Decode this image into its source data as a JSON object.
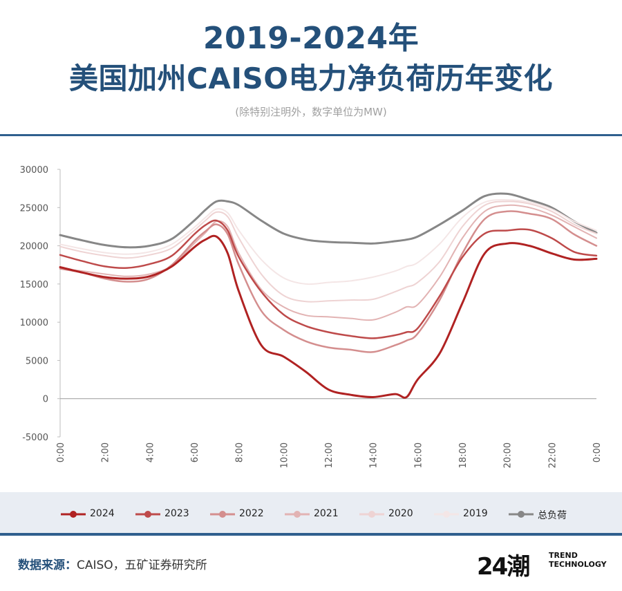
{
  "header": {
    "title_line1": "2019-2024年",
    "title_line2": "美国加州CAISO电力净负荷历年变化",
    "subtitle": "(除特别注明外，数字单位为MW)"
  },
  "footer": {
    "source_label": "数据来源：",
    "source_text": "CAISO，五矿证券研究所",
    "logo_mark": "24潮",
    "logo_line1": "TREND",
    "logo_line2": "TECHNOLOGY"
  },
  "chart_data": {
    "type": "line",
    "title": "2019-2024年美国加州CAISO电力净负荷历年变化",
    "ylabel": "MW",
    "xlabel": "",
    "ylim": [
      -5000,
      30000
    ],
    "yticks": [
      -5000,
      0,
      5000,
      10000,
      15000,
      20000,
      25000,
      30000
    ],
    "ytick_labels": [
      "-5000",
      "0",
      "5000",
      "10000",
      "15000",
      "20000",
      "25000",
      "30000"
    ],
    "x": [
      0,
      1,
      2,
      3,
      4,
      5,
      6,
      6.5,
      7,
      7.5,
      8,
      9,
      10,
      11,
      12,
      13,
      14,
      15,
      15.5,
      16,
      17,
      18,
      19,
      20,
      21,
      22,
      23,
      24
    ],
    "xtick_labels": [
      "0:00",
      "2:00",
      "4:00",
      "6:00",
      "8:00",
      "10:00",
      "12:00",
      "14:00",
      "16:00",
      "18:00",
      "20:00",
      "22:00",
      "0:00"
    ],
    "xtick_hours": [
      0,
      2,
      4,
      6,
      8,
      10,
      12,
      14,
      16,
      18,
      20,
      22,
      24
    ],
    "grid": false,
    "legend_position": "bottom",
    "series": [
      {
        "name": "2024",
        "color": "#b02222",
        "width": 3,
        "values": [
          17200,
          16500,
          15900,
          15700,
          16000,
          17300,
          19800,
          20800,
          21200,
          19000,
          14000,
          7000,
          5500,
          3500,
          1200,
          500,
          200,
          600,
          200,
          2500,
          6000,
          12500,
          19000,
          20300,
          20000,
          19000,
          18200,
          18300
        ]
      },
      {
        "name": "2023",
        "color": "#be4a4a",
        "width": 2.5,
        "values": [
          18800,
          18000,
          17300,
          17100,
          17600,
          18700,
          21500,
          22700,
          23300,
          22000,
          18500,
          14000,
          11000,
          9500,
          8700,
          8200,
          7900,
          8300,
          8700,
          9200,
          13500,
          18500,
          21600,
          22000,
          22100,
          21000,
          19200,
          18700
        ]
      },
      {
        "name": "2022",
        "color": "#d48e8e",
        "width": 2.5,
        "values": [
          17000,
          16500,
          15700,
          15300,
          15700,
          17500,
          20600,
          21900,
          22800,
          21500,
          17500,
          11500,
          9000,
          7500,
          6700,
          6400,
          6100,
          7000,
          7600,
          8500,
          13000,
          19000,
          23500,
          24500,
          24200,
          23500,
          21500,
          20000
        ]
      },
      {
        "name": "2021",
        "color": "#e2b3b3",
        "width": 2,
        "values": [
          17000,
          16700,
          16300,
          16000,
          16300,
          17400,
          20300,
          21700,
          23200,
          22500,
          19000,
          14300,
          12000,
          10900,
          10700,
          10500,
          10300,
          11300,
          12000,
          12300,
          16000,
          21000,
          24500,
          25300,
          25000,
          24000,
          22500,
          21000
        ]
      },
      {
        "name": "2020",
        "color": "#eed3d3",
        "width": 2,
        "values": [
          19900,
          19200,
          18700,
          18400,
          18800,
          19700,
          22000,
          23300,
          24400,
          23800,
          21000,
          16300,
          13500,
          12700,
          12800,
          12900,
          13000,
          14000,
          14600,
          15200,
          18000,
          22500,
          25300,
          25800,
          25500,
          24500,
          22800,
          21600
        ]
      },
      {
        "name": "2019",
        "color": "#f4e6e6",
        "width": 2,
        "values": [
          20200,
          19600,
          19100,
          18900,
          19200,
          20200,
          22400,
          23700,
          24800,
          24300,
          22000,
          18200,
          15800,
          15000,
          15200,
          15400,
          15900,
          16700,
          17300,
          17800,
          20300,
          23700,
          25700,
          26000,
          25700,
          24800,
          23200,
          22000
        ]
      },
      {
        "name": "总负荷",
        "color": "#878787",
        "width": 3,
        "values": [
          21400,
          20700,
          20100,
          19800,
          20000,
          20900,
          23300,
          24700,
          25800,
          25800,
          25300,
          23300,
          21600,
          20800,
          20500,
          20400,
          20300,
          20600,
          20800,
          21200,
          22800,
          24600,
          26500,
          26800,
          26000,
          25000,
          23200,
          21700
        ]
      }
    ]
  }
}
